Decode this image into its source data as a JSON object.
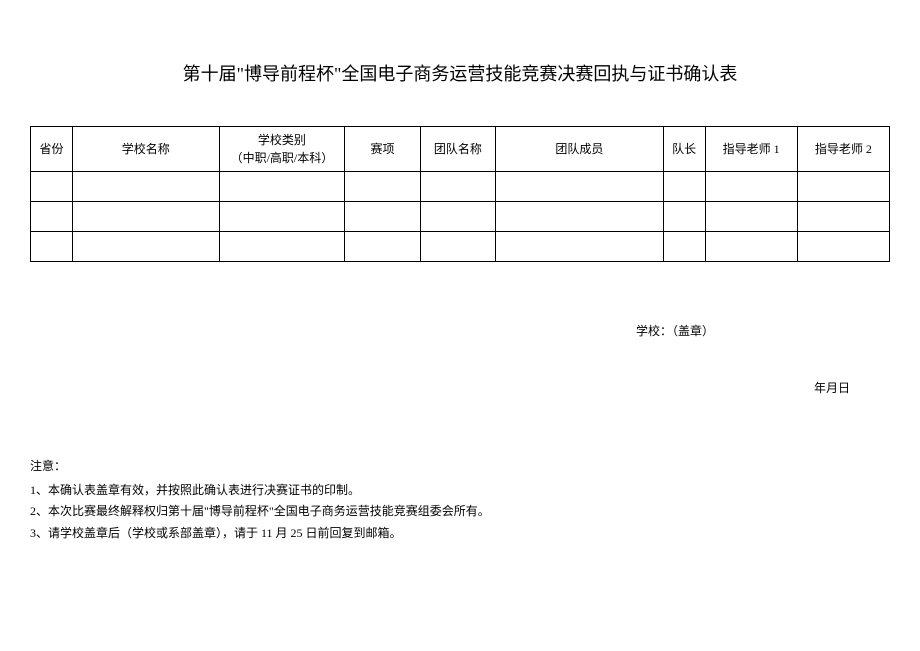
{
  "title": "第十届\"博导前程杯\"全国电子商务运营技能竞赛决赛回执与证书确认表",
  "table": {
    "headers": {
      "province": "省份",
      "school": "学校名称",
      "category_line1": "学校类别",
      "category_line2": "（中职/高职/本科）",
      "event": "赛项",
      "team": "团队名称",
      "members": "团队成员",
      "leader": "队长",
      "teacher1": "指导老师 1",
      "teacher2": "指导老师 2"
    },
    "rows": [
      {
        "province": "",
        "school": "",
        "category": "",
        "event": "",
        "team": "",
        "members": "",
        "leader": "",
        "teacher1": "",
        "teacher2": ""
      },
      {
        "province": "",
        "school": "",
        "category": "",
        "event": "",
        "team": "",
        "members": "",
        "leader": "",
        "teacher1": "",
        "teacher2": ""
      },
      {
        "province": "",
        "school": "",
        "category": "",
        "event": "",
        "team": "",
        "members": "",
        "leader": "",
        "teacher1": "",
        "teacher2": ""
      }
    ],
    "column_widths": {
      "province": 40,
      "school": 140,
      "category": 120,
      "event": 72,
      "team": 72,
      "members": 160,
      "leader": 40,
      "teacher1": 88,
      "teacher2": 88
    },
    "border_color": "#000000",
    "header_fontsize": 12,
    "cell_fontsize": 12
  },
  "signature": "学校：（盖章）",
  "date": "年月日",
  "notes": {
    "title": "注意：",
    "items": [
      "1、本确认表盖章有效，并按照此确认表进行决赛证书的印制。",
      "2、本次比赛最终解释权归第十届\"博导前程杯\"全国电子商务运营技能竞赛组委会所有。",
      "3、请学校盖章后（学校或系部盖章），请于 11 月 25 日前回复到邮箱。"
    ]
  },
  "colors": {
    "background": "#ffffff",
    "text": "#000000"
  }
}
